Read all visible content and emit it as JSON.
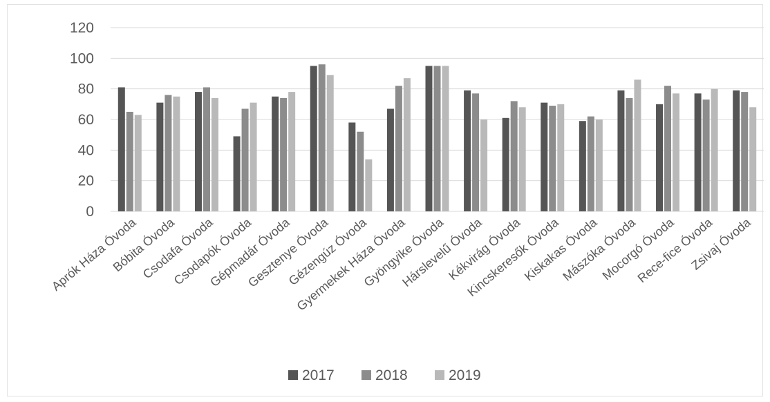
{
  "chart_data": {
    "type": "bar",
    "title": "",
    "xlabel": "",
    "ylabel": "",
    "ylim": [
      0,
      120
    ],
    "yticks": [
      "0",
      "20",
      "40",
      "60",
      "80",
      "100",
      "120"
    ],
    "grid": true,
    "legend_position": "bottom",
    "categories": [
      "Aprók Háza Óvoda",
      "Bóbita Óvoda",
      "Csodafa Óvoda",
      "Csodapók Óvoda",
      "Gépmadár Óvoda",
      "Gesztenye Óvoda",
      "Gézengúz Óvoda",
      "Gyermekek Háza Óvoda",
      "Gyöngyike Óvoda",
      "Hárslevelű Óvoda",
      "Kékvirág Óvoda",
      "Kincskeresők Óvoda",
      "Kiskakas Óvoda",
      "Mászóka Óvoda",
      "Mocorgó Óvoda",
      "Rece-fice Óvoda",
      "Zsivaj Óvoda"
    ],
    "series": [
      {
        "name": "2017",
        "color": "#555555",
        "values": [
          81,
          71,
          78,
          49,
          75,
          95,
          58,
          67,
          95,
          79,
          61,
          71,
          59,
          79,
          70,
          77,
          79
        ]
      },
      {
        "name": "2018",
        "color": "#8c8c8c",
        "values": [
          65,
          76,
          81,
          67,
          74,
          96,
          52,
          82,
          95,
          77,
          72,
          69,
          62,
          74,
          82,
          73,
          78
        ]
      },
      {
        "name": "2019",
        "color": "#b9b9b9",
        "values": [
          63,
          75,
          74,
          71,
          78,
          89,
          34,
          87,
          95,
          60,
          68,
          70,
          60,
          86,
          77,
          80,
          68
        ]
      }
    ]
  }
}
